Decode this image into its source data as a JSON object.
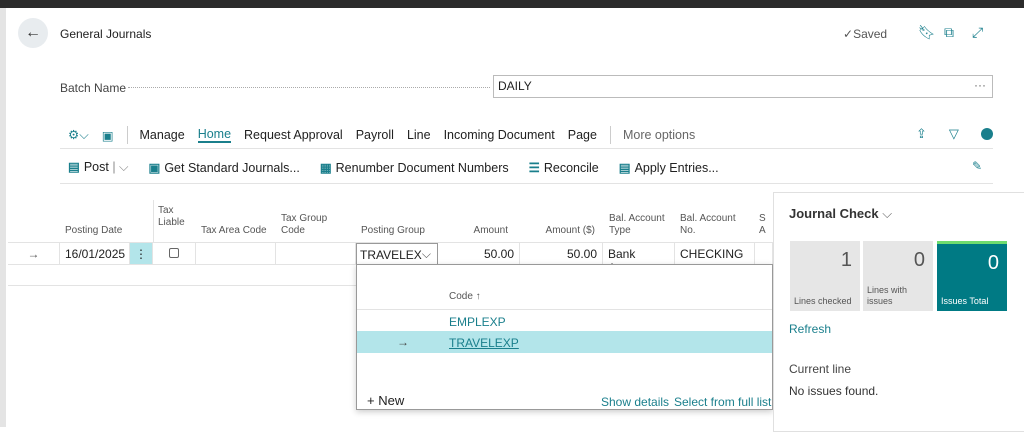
{
  "header": {
    "title": "General Journals",
    "status": "Saved",
    "icons": [
      "bookmark-icon",
      "open-new-window-icon",
      "expand-icon"
    ]
  },
  "batch": {
    "label": "Batch Name",
    "value": "DAILY",
    "more": "···"
  },
  "menu": {
    "items": [
      "Manage",
      "Home",
      "Request Approval",
      "Payroll",
      "Line",
      "Incoming Document",
      "Page"
    ],
    "active": "Home",
    "more": "More options"
  },
  "actions": {
    "post": "Post",
    "get_standard": "Get Standard Journals...",
    "renumber": "Renumber Document Numbers",
    "reconcile": "Reconcile",
    "apply": "Apply Entries..."
  },
  "grid": {
    "headers": {
      "posting_date": "Posting Date",
      "tax_liable": "Tax Liable",
      "tax_area": "Tax Area Code",
      "tax_group": "Tax Group Code",
      "posting_group": "Posting Group",
      "amount": "Amount",
      "amount_usd": "Amount ($)",
      "bal_type": "Bal. Account Type",
      "bal_no": "Bal. Account No.",
      "s": "S A"
    },
    "rows": [
      {
        "posting_date": "16/01/2025",
        "tax_liable": false,
        "tax_area": "",
        "tax_group": "",
        "posting_group": "TRAVELEX",
        "amount": "50.00",
        "amount_usd": "50.00",
        "bal_type": "Bank Acco...",
        "bal_no": "CHECKING"
      }
    ]
  },
  "dropdown": {
    "column": "Code ↑",
    "options": [
      "EMPLEXP",
      "TRAVELEXP"
    ],
    "selected": "TRAVELEXP",
    "new": "New",
    "show_details": "Show details",
    "select_full": "Select from full list"
  },
  "journal_check": {
    "title": "Journal Check",
    "tiles": [
      {
        "value": "1",
        "label": "Lines checked"
      },
      {
        "value": "0",
        "label": "Lines with issues"
      },
      {
        "value": "0",
        "label": "Issues Total"
      }
    ],
    "refresh": "Refresh",
    "current_line_label": "Current line",
    "current_line_text": "No issues found."
  },
  "colors": {
    "accent": "#1a7f8c",
    "selected_row": "#b3e5ea",
    "tile_active": "#007a84"
  }
}
